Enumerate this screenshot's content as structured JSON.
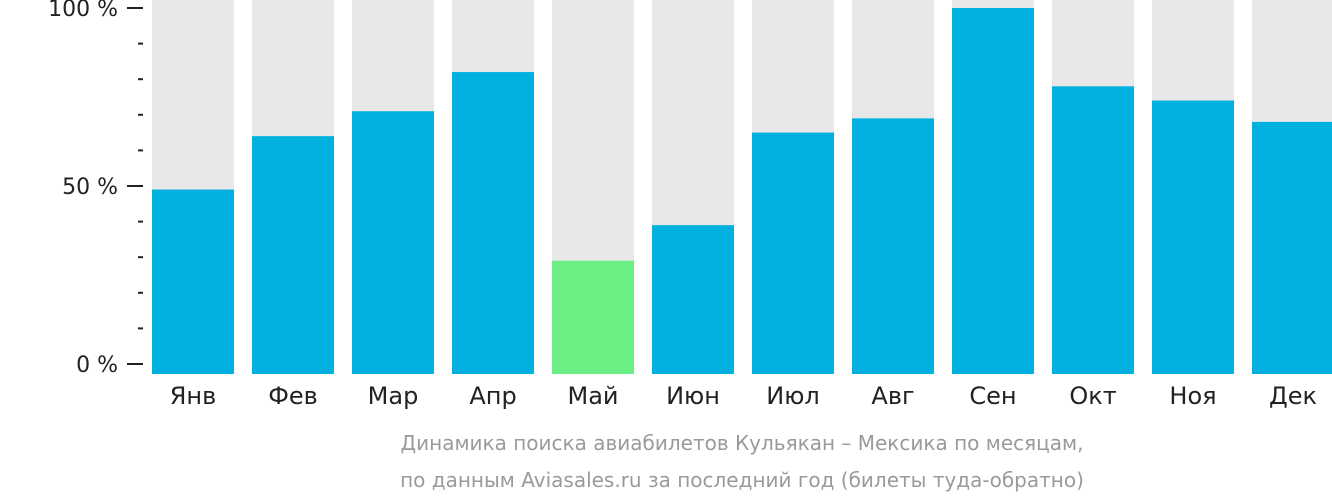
{
  "chart_data": {
    "type": "bar",
    "categories": [
      "Янв",
      "Фев",
      "Мар",
      "Апр",
      "Май",
      "Июн",
      "Июл",
      "Авг",
      "Сен",
      "Окт",
      "Ноя",
      "Дек"
    ],
    "values": [
      49,
      64,
      71,
      82,
      29,
      39,
      65,
      69,
      100,
      78,
      74,
      68
    ],
    "ylim": [
      0,
      100
    ],
    "yticks": [
      {
        "value": 0,
        "label": "0 %"
      },
      {
        "value": 50,
        "label": "50 %"
      },
      {
        "value": 100,
        "label": "100 %"
      }
    ],
    "minor_ytick_step": 10,
    "highlight_index": 4,
    "colors": {
      "bar": "#00b0de",
      "highlight": "#6cf086",
      "background_bar": "#e8e8e8",
      "axis": "#222222"
    },
    "caption": [
      "Динамика поиска авиабилетов Кульякан – Мексика по месяцам,",
      "по данным Aviasales.ru за последний год (билеты туда-обратно)"
    ]
  }
}
